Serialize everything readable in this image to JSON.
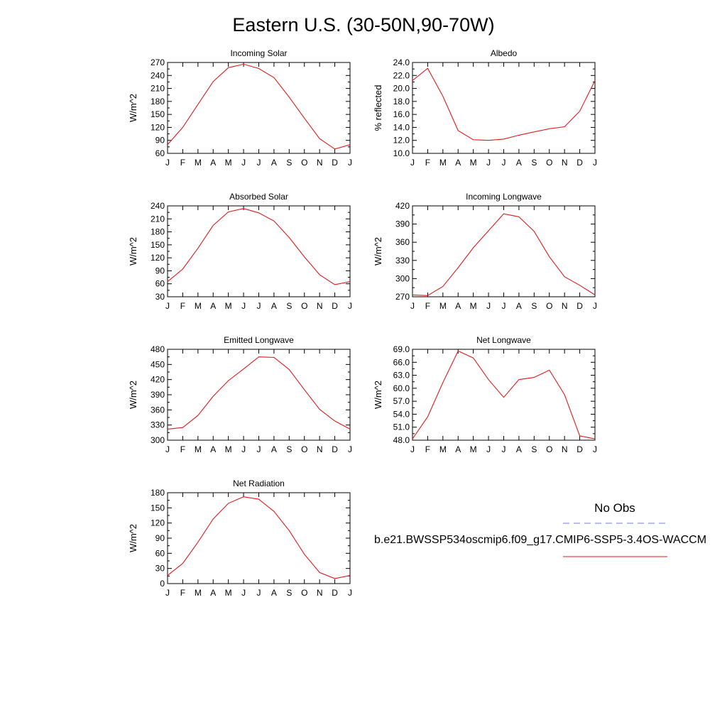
{
  "title": "Eastern U.S. (30-50N,90-70W)",
  "colors": {
    "model": "#e31a1c",
    "obs": "#7777dd",
    "axis": "#000000"
  },
  "legend": {
    "obs_label": "No Obs",
    "model_label": "b.e21.BWSSP534oscmip6.f09_g17.CMIP6-SSP5-3.4OS-WACCM"
  },
  "chart_data": [
    {
      "type": "line",
      "title": "Incoming Solar",
      "ylabel": "W/m^2",
      "categories": [
        "J",
        "F",
        "M",
        "A",
        "M",
        "J",
        "J",
        "A",
        "S",
        "O",
        "N",
        "D",
        "J"
      ],
      "ylim": [
        60,
        270
      ],
      "yticks": [
        "60",
        "90",
        "120",
        "150",
        "180",
        "210",
        "240",
        "270"
      ],
      "values": [
        80,
        120,
        173,
        226,
        258,
        266,
        256,
        235,
        190,
        141,
        94,
        70,
        80
      ]
    },
    {
      "type": "line",
      "title": "Albedo",
      "ylabel": "% reflected",
      "categories": [
        "J",
        "F",
        "M",
        "A",
        "M",
        "J",
        "J",
        "A",
        "S",
        "O",
        "N",
        "D",
        "J"
      ],
      "ylim": [
        10,
        24
      ],
      "yticks": [
        "10.0",
        "12.0",
        "14.0",
        "16.0",
        "18.0",
        "20.0",
        "22.0",
        "24.0"
      ],
      "values": [
        21.2,
        23.1,
        18.8,
        13.5,
        12.1,
        12.0,
        12.2,
        12.8,
        13.3,
        13.8,
        14.1,
        16.5,
        21.2
      ]
    },
    {
      "type": "line",
      "title": "Absorbed Solar",
      "ylabel": "W/m^2",
      "categories": [
        "J",
        "F",
        "M",
        "A",
        "M",
        "J",
        "J",
        "A",
        "S",
        "O",
        "N",
        "D",
        "J"
      ],
      "ylim": [
        30,
        240
      ],
      "yticks": [
        "30",
        "60",
        "90",
        "120",
        "150",
        "180",
        "210",
        "240"
      ],
      "values": [
        65,
        94,
        142,
        195,
        226,
        234,
        224,
        205,
        167,
        122,
        81,
        58,
        65
      ]
    },
    {
      "type": "line",
      "title": "Incoming Longwave",
      "ylabel": "W/m^2",
      "categories": [
        "J",
        "F",
        "M",
        "A",
        "M",
        "J",
        "J",
        "A",
        "S",
        "O",
        "N",
        "D",
        "J"
      ],
      "ylim": [
        270,
        420
      ],
      "yticks": [
        "270",
        "300",
        "330",
        "360",
        "390",
        "420"
      ],
      "values": [
        273,
        272,
        287,
        318,
        351,
        379,
        407,
        402,
        378,
        336,
        303,
        289,
        273
      ]
    },
    {
      "type": "line",
      "title": "Emitted Longwave",
      "ylabel": "W/m^2",
      "categories": [
        "J",
        "F",
        "M",
        "A",
        "M",
        "J",
        "J",
        "A",
        "S",
        "O",
        "N",
        "D",
        "J"
      ],
      "ylim": [
        300,
        480
      ],
      "yticks": [
        "300",
        "330",
        "360",
        "390",
        "420",
        "450",
        "480"
      ],
      "values": [
        322,
        325,
        349,
        387,
        418,
        441,
        465,
        464,
        440,
        400,
        361,
        338,
        322
      ]
    },
    {
      "type": "line",
      "title": "Net Longwave",
      "ylabel": "W/m^2",
      "categories": [
        "J",
        "F",
        "M",
        "A",
        "M",
        "J",
        "J",
        "A",
        "S",
        "O",
        "N",
        "D",
        "J"
      ],
      "ylim": [
        48,
        69
      ],
      "yticks": [
        "48.0",
        "51.0",
        "54.0",
        "57.0",
        "60.0",
        "63.0",
        "66.0",
        "69.0"
      ],
      "values": [
        48.3,
        53.4,
        61.3,
        68.6,
        67.0,
        62.0,
        57.9,
        62.0,
        62.5,
        64.2,
        58.5,
        49.0,
        48.3
      ]
    },
    {
      "type": "line",
      "title": "Net Radiation",
      "ylabel": "W/m^2",
      "categories": [
        "J",
        "F",
        "M",
        "A",
        "M",
        "J",
        "J",
        "A",
        "S",
        "O",
        "N",
        "D",
        "J"
      ],
      "ylim": [
        0,
        180
      ],
      "yticks": [
        "0",
        "30",
        "60",
        "90",
        "120",
        "150",
        "180"
      ],
      "values": [
        16,
        40,
        82,
        128,
        159,
        172,
        167,
        143,
        105,
        58,
        22,
        10,
        16
      ]
    }
  ]
}
